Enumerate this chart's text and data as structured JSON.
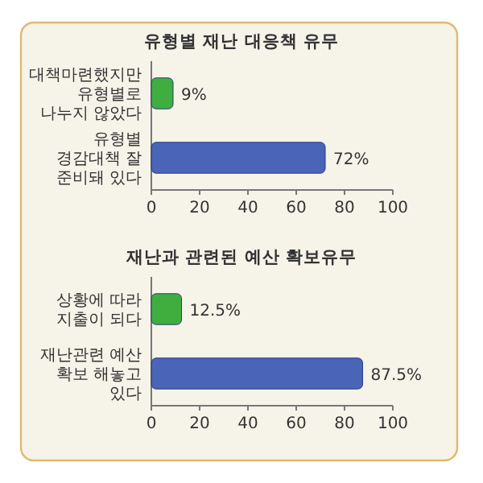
{
  "chart_data": [
    {
      "type": "bar",
      "orientation": "horizontal",
      "title": "유형별 재난 대응책 유무",
      "categories": [
        "대책마련했지만 유형별로 나누지 않았다",
        "유형별 경감대책 잘 준비돼 있다"
      ],
      "values": [
        9,
        72
      ],
      "colors": [
        "#3fae3f",
        "#4a64b8"
      ],
      "value_labels": [
        "9%",
        "72%"
      ],
      "xlim": [
        0,
        100
      ],
      "xticks": [
        0,
        20,
        40,
        60,
        80,
        100
      ],
      "grid": false
    },
    {
      "type": "bar",
      "orientation": "horizontal",
      "title": "재난과 관련된 예산 확보유무",
      "categories": [
        "상황에 따라 지출이 되다",
        "재난관련 예산 확보 해놓고 있다"
      ],
      "values": [
        12.5,
        87.5
      ],
      "colors": [
        "#3fae3f",
        "#4a64b8"
      ],
      "value_labels": [
        "12.5%",
        "87.5%"
      ],
      "xlim": [
        0,
        100
      ],
      "xticks": [
        0,
        20,
        40,
        60,
        80,
        100
      ],
      "grid": false
    }
  ]
}
